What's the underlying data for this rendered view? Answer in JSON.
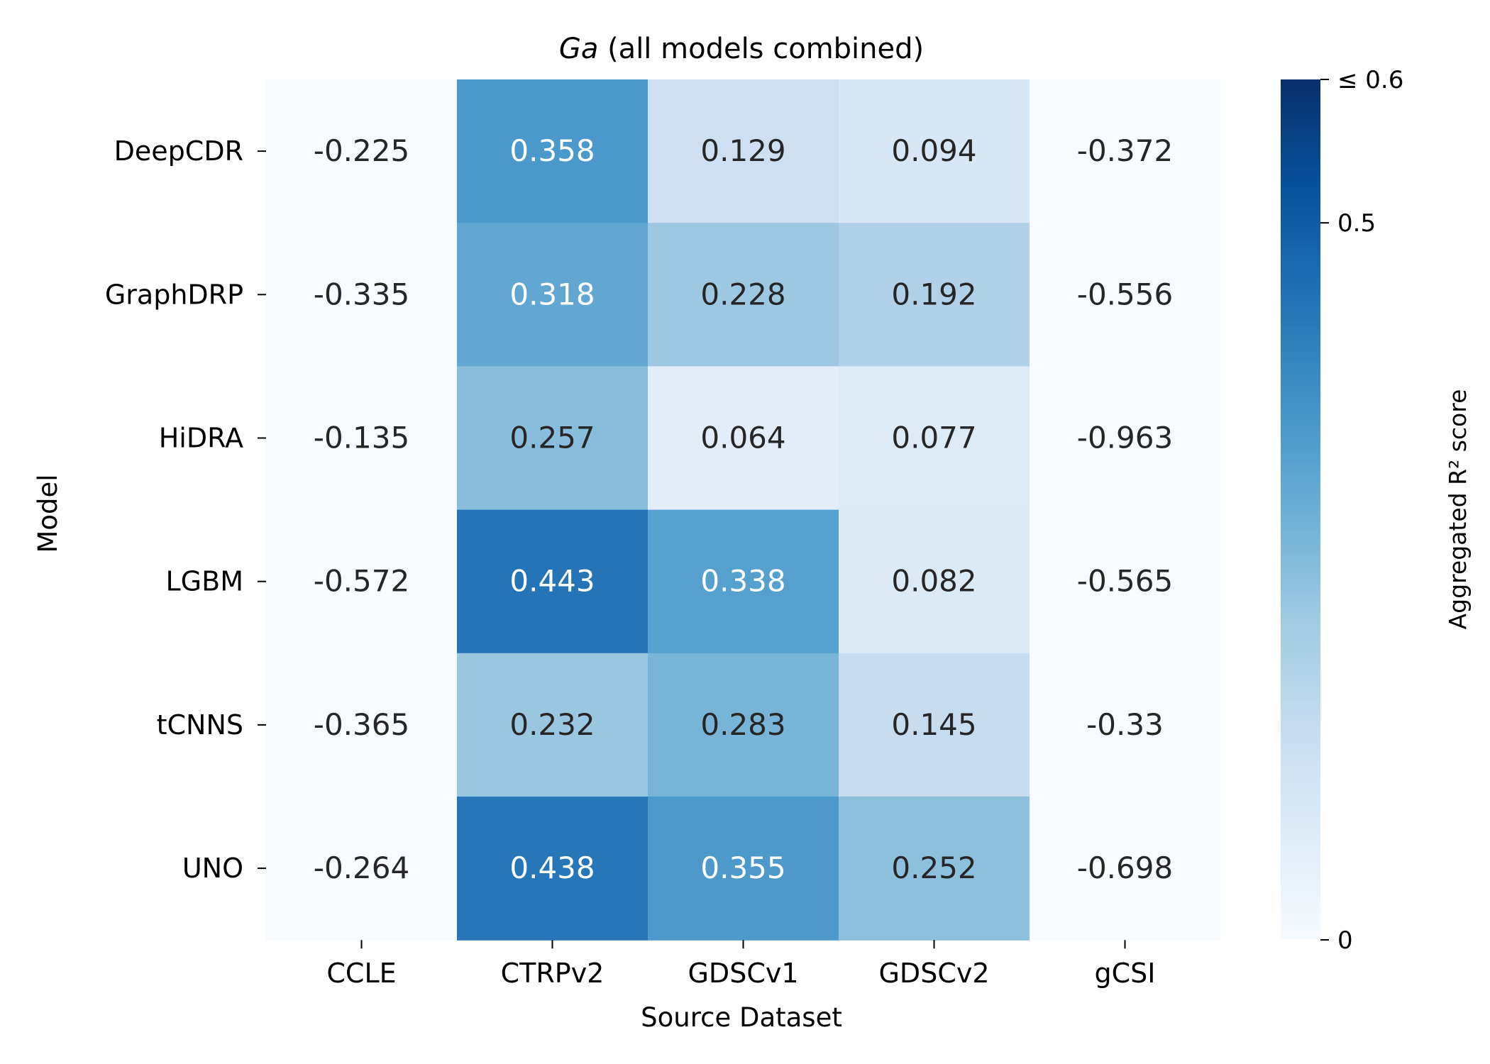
{
  "chart_data": {
    "type": "heatmap",
    "title": "Ga",
    "title_suffix": " (all models combined)",
    "xlabel": "Source Dataset",
    "ylabel": "Model",
    "rows": [
      "DeepCDR",
      "GraphDRP",
      "HiDRA",
      "LGBM",
      "tCNNS",
      "UNO"
    ],
    "columns": [
      "CCLE",
      "CTRPv2",
      "GDSCv1",
      "GDSCv2",
      "gCSI"
    ],
    "values": [
      [
        -0.225,
        0.358,
        0.129,
        0.094,
        -0.372
      ],
      [
        -0.335,
        0.318,
        0.228,
        0.192,
        -0.556
      ],
      [
        -0.135,
        0.257,
        0.064,
        0.077,
        -0.963
      ],
      [
        -0.572,
        0.443,
        0.338,
        0.082,
        -0.565
      ],
      [
        -0.365,
        0.232,
        0.283,
        0.145,
        -0.33
      ],
      [
        -0.264,
        0.438,
        0.355,
        0.252,
        -0.698
      ]
    ],
    "labels": [
      [
        "-0.225",
        "0.358",
        "0.129",
        "0.094",
        "-0.372"
      ],
      [
        "-0.335",
        "0.318",
        "0.228",
        "0.192",
        "-0.556"
      ],
      [
        "-0.135",
        "0.257",
        "0.064",
        "0.077",
        "-0.963"
      ],
      [
        "-0.572",
        "0.443",
        "0.338",
        "0.082",
        "-0.565"
      ],
      [
        "-0.365",
        "0.232",
        "0.283",
        "0.145",
        "-0.33"
      ],
      [
        "-0.264",
        "0.438",
        "0.355",
        "0.252",
        "-0.698"
      ]
    ],
    "vmin": 0,
    "vmax": 0.6,
    "colormap": "Blues",
    "colorbar": {
      "label": "Aggregated R² score",
      "ticks": [
        {
          "value": 0.6,
          "label": "≤ 0.6"
        },
        {
          "value": 0.5,
          "label": "0.5"
        },
        {
          "value": 0,
          "label": "0"
        }
      ]
    }
  },
  "colors": {
    "cmap": [
      "#f7fbff",
      "#deebf7",
      "#c6dbef",
      "#9ecae1",
      "#6baed6",
      "#4292c6",
      "#2171b5",
      "#08519c",
      "#08306b"
    ],
    "text_dark": "#262626",
    "text_light": "#ffffff"
  }
}
